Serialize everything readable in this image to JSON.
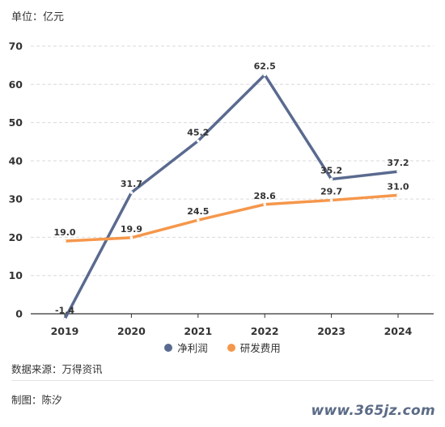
{
  "unit_label": "单位：亿元",
  "source": "数据来源：万得资讯",
  "author": "制图：陈汐",
  "watermark": "www.365jz.com",
  "colors": {
    "net_profit": "#5a6a8f",
    "rd_expense": "#f5974b",
    "grid": "#d9d9d9",
    "axis": "#333333"
  },
  "chart_data": {
    "type": "line",
    "categories": [
      "2019",
      "2020",
      "2021",
      "2022",
      "2023",
      "2024"
    ],
    "series": [
      {
        "name": "净利润",
        "values": [
          -1.4,
          31.7,
          45.2,
          62.5,
          35.2,
          37.2
        ],
        "labels": [
          "-1.4",
          "31.7",
          "45.2",
          "62.5",
          "35.2",
          "37.2"
        ]
      },
      {
        "name": "研发费用",
        "values": [
          19.0,
          19.9,
          24.5,
          28.6,
          29.7,
          31.0
        ],
        "labels": [
          "19.0",
          "19.9",
          "24.5",
          "28.6",
          "29.7",
          "31.0"
        ]
      }
    ],
    "yticks": [
      "0",
      "10",
      "20",
      "30",
      "40",
      "50",
      "60",
      "70"
    ],
    "ylim": [
      0,
      70
    ],
    "grid": true,
    "legend": "bottom-center"
  }
}
